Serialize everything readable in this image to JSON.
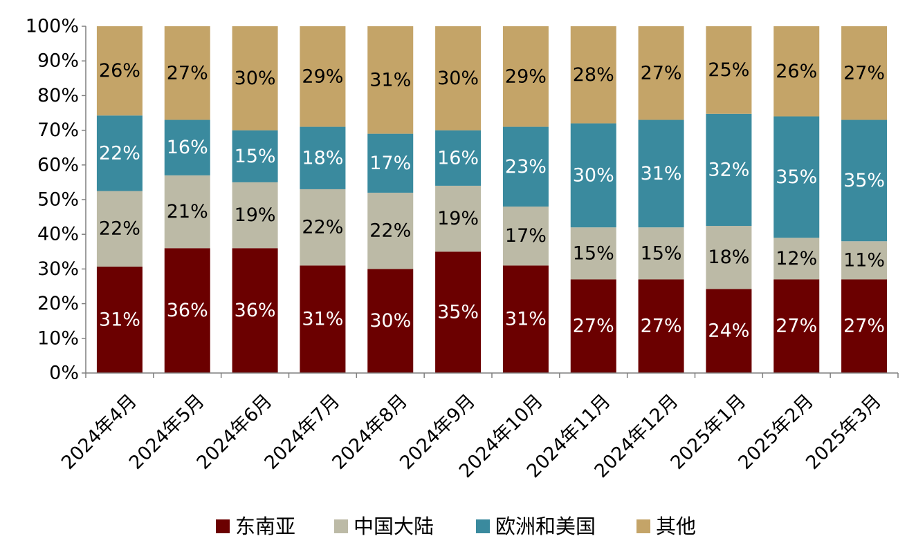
{
  "chart_data": {
    "type": "bar",
    "stacked": true,
    "title": "",
    "xlabel": "",
    "ylabel": "",
    "ylim": [
      0,
      100
    ],
    "y_unit": "%",
    "y_ticks": [
      "0%",
      "10%",
      "20%",
      "30%",
      "40%",
      "50%",
      "60%",
      "70%",
      "80%",
      "90%",
      "100%"
    ],
    "categories": [
      "2024年4月",
      "2024年5月",
      "2024年6月",
      "2024年7月",
      "2024年8月",
      "2024年9月",
      "2024年10月",
      "2024年11月",
      "2024年12月",
      "2025年1月",
      "2025年2月",
      "2025年3月"
    ],
    "series": [
      {
        "name": "东南亚",
        "color": "#6b0000",
        "label_color": "#ffffff",
        "values": [
          31,
          36,
          36,
          31,
          30,
          35,
          31,
          27,
          27,
          24,
          27,
          27
        ]
      },
      {
        "name": "中国大陆",
        "color": "#bcbaa6",
        "label_color": "#000000",
        "values": [
          22,
          21,
          19,
          22,
          22,
          19,
          17,
          15,
          15,
          18,
          12,
          11
        ]
      },
      {
        "name": "欧洲和美国",
        "color": "#3a8a9e",
        "label_color": "#ffffff",
        "values": [
          22,
          16,
          15,
          18,
          17,
          16,
          23,
          30,
          31,
          32,
          35,
          35
        ]
      },
      {
        "name": "其他",
        "color": "#c4a468",
        "label_color": "#000000",
        "values": [
          26,
          27,
          30,
          29,
          31,
          30,
          29,
          28,
          27,
          25,
          26,
          27
        ]
      }
    ],
    "legend_position": "bottom",
    "grid": false
  }
}
